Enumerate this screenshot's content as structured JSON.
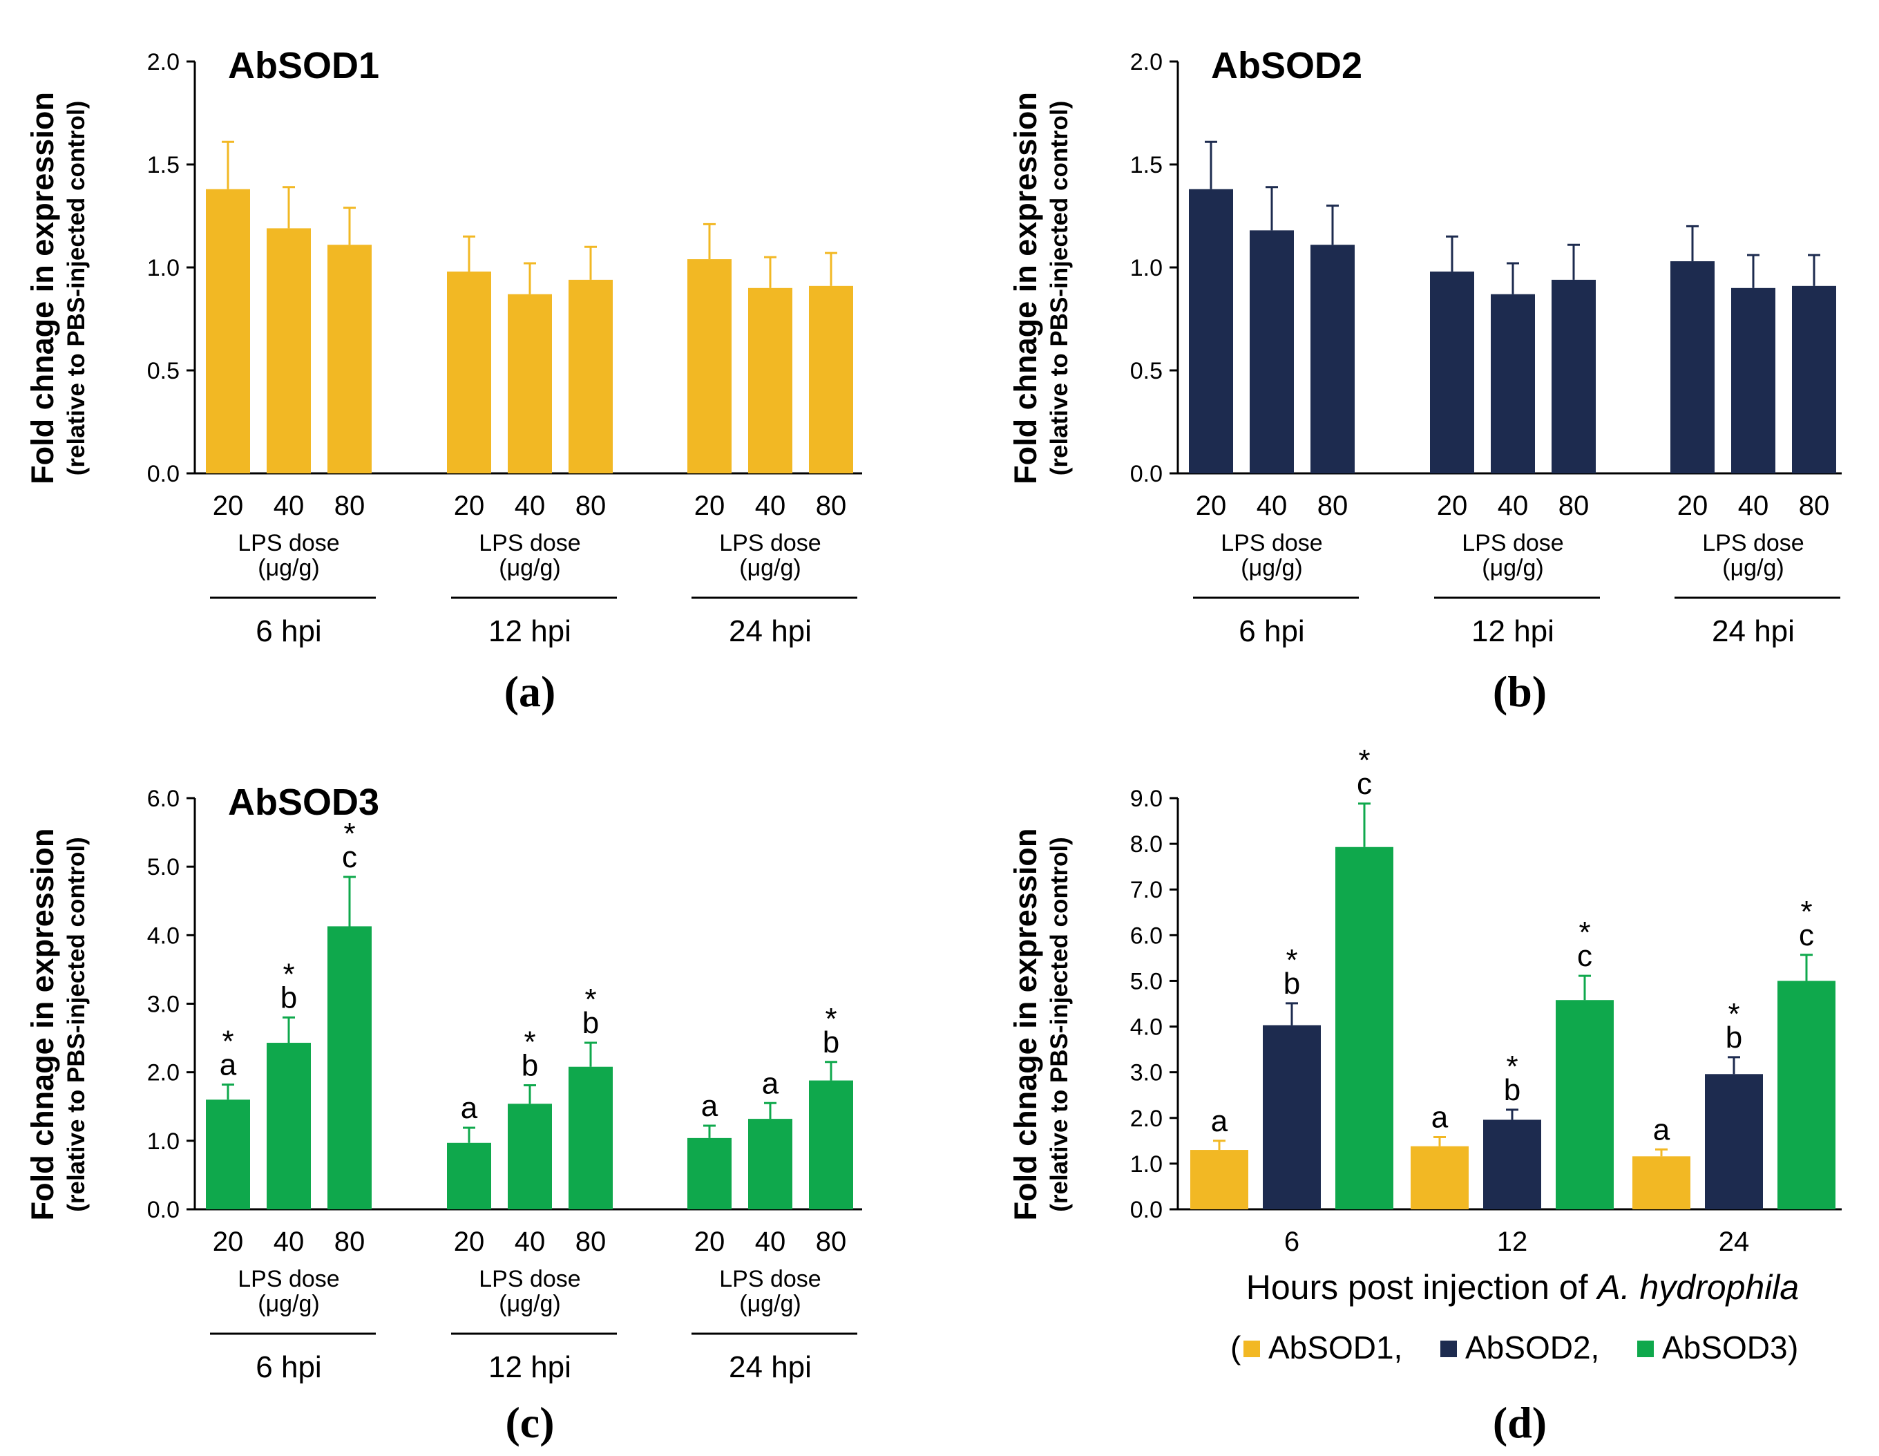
{
  "figure": {
    "colors": {
      "AbSOD1": "#F2B824",
      "AbSOD2": "#1D2B4F",
      "AbSOD3": "#0FA84C",
      "axis": "#000000"
    }
  },
  "chart_data": [
    {
      "id": "a",
      "type": "bar",
      "panel_label": "(a)",
      "title": "AbSOD1",
      "ylabel": "Fold chnage in expression",
      "ylabel2": "(relative to PBS-injected control)",
      "ylim": [
        0,
        2.0
      ],
      "yticks": [
        "0.0",
        "0.5",
        "1.0",
        "1.5",
        "2.0"
      ],
      "color_key": "AbSOD1",
      "dose_label": "LPS dose",
      "dose_unit": "(μg/g)",
      "groups": [
        {
          "label": "6 hpi",
          "categories": [
            "20",
            "40",
            "80"
          ],
          "values": [
            1.38,
            1.19,
            1.11
          ],
          "errors": [
            0.23,
            0.2,
            0.18
          ],
          "sig": [
            "",
            "",
            ""
          ],
          "star": [
            false,
            false,
            false
          ]
        },
        {
          "label": "12 hpi",
          "categories": [
            "20",
            "40",
            "80"
          ],
          "values": [
            0.98,
            0.87,
            0.94
          ],
          "errors": [
            0.17,
            0.15,
            0.16
          ],
          "sig": [
            "",
            "",
            ""
          ],
          "star": [
            false,
            false,
            false
          ]
        },
        {
          "label": "24 hpi",
          "categories": [
            "20",
            "40",
            "80"
          ],
          "values": [
            1.04,
            0.9,
            0.91
          ],
          "errors": [
            0.17,
            0.15,
            0.16
          ],
          "sig": [
            "",
            "",
            ""
          ],
          "star": [
            false,
            false,
            false
          ]
        }
      ]
    },
    {
      "id": "b",
      "type": "bar",
      "panel_label": "(b)",
      "title": "AbSOD2",
      "ylabel": "Fold chnage in expression",
      "ylabel2": "(relative to PBS-injected control)",
      "ylim": [
        0,
        2.0
      ],
      "yticks": [
        "0.0",
        "0.5",
        "1.0",
        "1.5",
        "2.0"
      ],
      "color_key": "AbSOD2",
      "dose_label": "LPS dose",
      "dose_unit": "(μg/g)",
      "groups": [
        {
          "label": "6 hpi",
          "categories": [
            "20",
            "40",
            "80"
          ],
          "values": [
            1.38,
            1.18,
            1.11
          ],
          "errors": [
            0.23,
            0.21,
            0.19
          ],
          "sig": [
            "",
            "",
            ""
          ],
          "star": [
            false,
            false,
            false
          ]
        },
        {
          "label": "12 hpi",
          "categories": [
            "20",
            "40",
            "80"
          ],
          "values": [
            0.98,
            0.87,
            0.94
          ],
          "errors": [
            0.17,
            0.15,
            0.17
          ],
          "sig": [
            "",
            "",
            ""
          ],
          "star": [
            false,
            false,
            false
          ]
        },
        {
          "label": "24 hpi",
          "categories": [
            "20",
            "40",
            "80"
          ],
          "values": [
            1.03,
            0.9,
            0.91
          ],
          "errors": [
            0.17,
            0.16,
            0.15
          ],
          "sig": [
            "",
            "",
            ""
          ],
          "star": [
            false,
            false,
            false
          ]
        }
      ]
    },
    {
      "id": "c",
      "type": "bar",
      "panel_label": "(c)",
      "title": "AbSOD3",
      "ylabel": "Fold chnage in expression",
      "ylabel2": "(relative to PBS-injected control)",
      "ylim": [
        0,
        6.0
      ],
      "yticks": [
        "0.0",
        "1.0",
        "2.0",
        "3.0",
        "4.0",
        "5.0",
        "6.0"
      ],
      "color_key": "AbSOD3",
      "dose_label": "LPS dose",
      "dose_unit": "(μg/g)",
      "groups": [
        {
          "label": "6 hpi",
          "categories": [
            "20",
            "40",
            "80"
          ],
          "values": [
            1.6,
            2.43,
            4.13
          ],
          "errors": [
            0.22,
            0.37,
            0.72
          ],
          "sig": [
            "a",
            "b",
            "c"
          ],
          "star": [
            true,
            true,
            true
          ]
        },
        {
          "label": "12 hpi",
          "categories": [
            "20",
            "40",
            "80"
          ],
          "values": [
            0.97,
            1.54,
            2.08
          ],
          "errors": [
            0.22,
            0.27,
            0.35
          ],
          "sig": [
            "a",
            "b",
            "b"
          ],
          "star": [
            false,
            true,
            true
          ]
        },
        {
          "label": "24 hpi",
          "categories": [
            "20",
            "40",
            "80"
          ],
          "values": [
            1.04,
            1.32,
            1.88
          ],
          "errors": [
            0.18,
            0.23,
            0.27
          ],
          "sig": [
            "a",
            "a",
            "b"
          ],
          "star": [
            false,
            false,
            true
          ]
        }
      ]
    },
    {
      "id": "d",
      "type": "bar",
      "panel_label": "(d)",
      "title": "",
      "ylabel": "Fold chnage in expression",
      "ylabel2": "(relative to PBS-injected control)",
      "ylim": [
        0,
        9.0
      ],
      "yticks": [
        "0.0",
        "1.0",
        "2.0",
        "3.0",
        "4.0",
        "5.0",
        "6.0",
        "7.0",
        "8.0",
        "9.0"
      ],
      "xlabel_prefix": "Hours post injection of ",
      "xlabel_italic": "A. hydrophila",
      "legend": {
        "open": "(",
        "close": ")",
        "items": [
          {
            "label": "AbSOD1,",
            "color_key": "AbSOD1"
          },
          {
            "label": "AbSOD2,",
            "color_key": "AbSOD2"
          },
          {
            "label": "AbSOD3",
            "color_key": "AbSOD3"
          }
        ]
      },
      "groups": [
        {
          "label": "6",
          "series": [
            "AbSOD1",
            "AbSOD2",
            "AbSOD3"
          ],
          "values": [
            1.3,
            4.03,
            7.93
          ],
          "errors": [
            0.2,
            0.48,
            0.95
          ],
          "sig": [
            "a",
            "b",
            "c"
          ],
          "star": [
            false,
            true,
            true
          ]
        },
        {
          "label": "12",
          "series": [
            "AbSOD1",
            "AbSOD2",
            "AbSOD3"
          ],
          "values": [
            1.38,
            1.96,
            4.58
          ],
          "errors": [
            0.2,
            0.22,
            0.53
          ],
          "sig": [
            "a",
            "b",
            "c"
          ],
          "star": [
            false,
            true,
            true
          ]
        },
        {
          "label": "24",
          "series": [
            "AbSOD1",
            "AbSOD2",
            "AbSOD3"
          ],
          "values": [
            1.16,
            2.96,
            5.0
          ],
          "errors": [
            0.15,
            0.37,
            0.57
          ],
          "sig": [
            "a",
            "b",
            "c"
          ],
          "star": [
            false,
            true,
            true
          ]
        }
      ]
    }
  ]
}
